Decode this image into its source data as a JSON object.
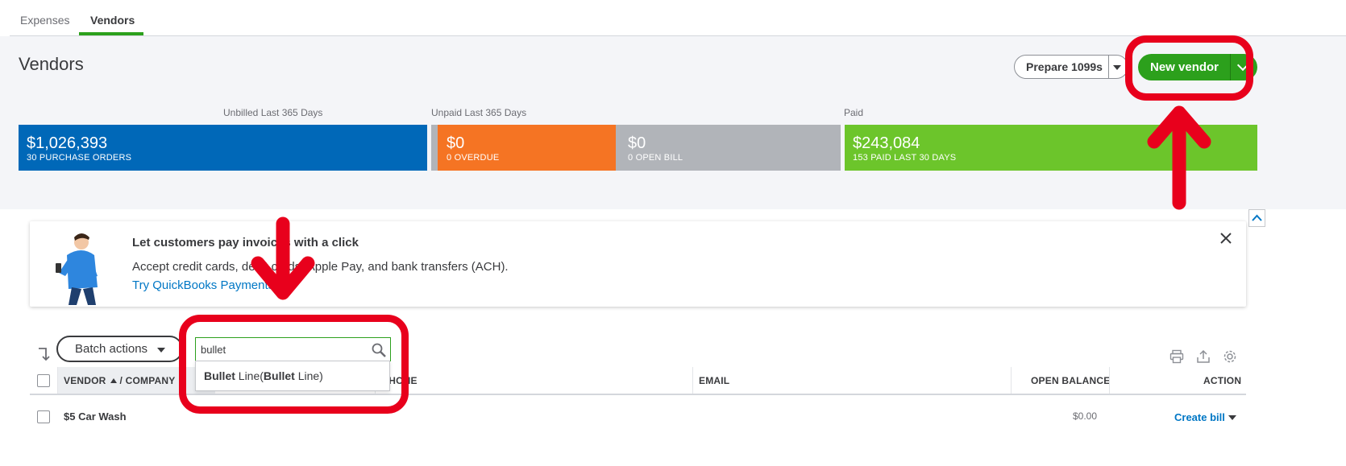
{
  "tabs": [
    {
      "label": "Expenses",
      "active": false
    },
    {
      "label": "Vendors",
      "active": true
    }
  ],
  "header": {
    "title": "Vendors",
    "prepare_label": "Prepare 1099s",
    "new_vendor_label": "New vendor"
  },
  "money_bar": {
    "labels": {
      "unbilled": "Unbilled Last 365 Days",
      "unpaid": "Unpaid Last 365 Days",
      "paid": "Paid"
    },
    "tiles": [
      {
        "amount": "$1,026,393",
        "caption": "30 PURCHASE ORDERS",
        "color": "#0068b8"
      },
      {
        "amount": "$0",
        "caption": "0 OVERDUE",
        "color": "#f57423"
      },
      {
        "amount": "$0",
        "caption": "0 OPEN BILL",
        "color": "#b1b4b9"
      },
      {
        "amount": "$243,084",
        "caption": "153 PAID LAST 30 DAYS",
        "color": "#6cc52b"
      }
    ]
  },
  "promo": {
    "title": "Let customers pay invoices with a click",
    "body": "Accept credit cards, debit cards, Apple Pay, and bank transfers (ACH).",
    "link": "Try QuickBooks Payments"
  },
  "toolbar": {
    "batch_label": "Batch actions",
    "search_value": "bullet"
  },
  "autocomplete": {
    "bold_1": "Bullet",
    "text_1": " Line(",
    "bold_2": "Bullet",
    "text_2": " Line)"
  },
  "table": {
    "columns": {
      "vendor": "VENDOR",
      "company": "/ COMPANY",
      "phone": "PHONE",
      "email": "EMAIL",
      "balance": "OPEN BALANCE",
      "action": "ACTION"
    },
    "rows": [
      {
        "vendor": "$5 Car Wash",
        "phone": "",
        "email": "",
        "balance": "$0.00",
        "action": "Create bill"
      }
    ]
  },
  "colors": {
    "brand_green": "#2ca01c",
    "annotation_red": "#e8001c",
    "link_blue": "#0077c5"
  }
}
